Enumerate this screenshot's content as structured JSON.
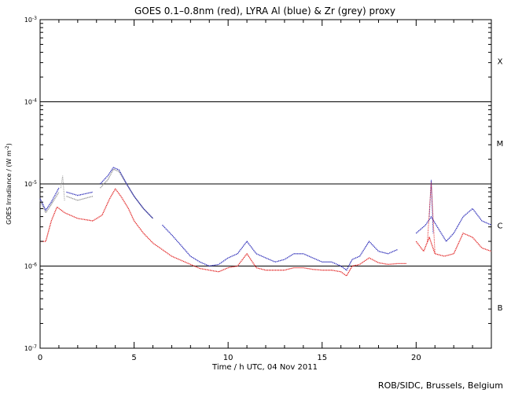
{
  "chart_data": {
    "type": "line",
    "title": "GOES 0.1–0.8nm (red), LYRA Al (blue) & Zr (grey) proxy",
    "xlabel": "Time / h UTC, 04 Nov 2011",
    "ylabel_main": "GOES Irradiance / (W m",
    "ylabel_exp": "-2",
    "ylabel_close": ")",
    "credit": "ROB/SIDC, Brussels, Belgium",
    "xlim": [
      0,
      24
    ],
    "ylim_exp": [
      -7,
      -3
    ],
    "x_ticks": [
      {
        "v": 0,
        "label": "0"
      },
      {
        "v": 5,
        "label": "5"
      },
      {
        "v": 10,
        "label": "10"
      },
      {
        "v": 15,
        "label": "15"
      },
      {
        "v": 20,
        "label": "20"
      }
    ],
    "x_minor": [
      1,
      2,
      3,
      4,
      6,
      7,
      8,
      9,
      11,
      12,
      13,
      14,
      16,
      17,
      18,
      19,
      21,
      22,
      23
    ],
    "y_ticks": [
      {
        "exp": -7,
        "base": "10",
        "sup": "-7"
      },
      {
        "exp": -6,
        "base": "10",
        "sup": "-6"
      },
      {
        "exp": -5,
        "base": "10",
        "sup": "-5"
      },
      {
        "exp": -4,
        "base": "10",
        "sup": "-4"
      },
      {
        "exp": -3,
        "base": "10",
        "sup": "-3"
      }
    ],
    "threshold_lines": [
      -6,
      -5,
      -4
    ],
    "flare_classes": [
      {
        "label": "X",
        "exp": -3.5
      },
      {
        "label": "M",
        "exp": -4.5
      },
      {
        "label": "C",
        "exp": -5.5
      },
      {
        "label": "B",
        "exp": -6.5
      }
    ],
    "series": [
      {
        "name": "LYRA Zr proxy",
        "color": "#8c8c8c",
        "segments": [
          [
            [
              0,
              -5.2
            ],
            [
              0.3,
              -5.35
            ],
            [
              0.6,
              -5.25
            ],
            [
              1.0,
              -5.1
            ]
          ],
          [
            [
              1.4,
              -5.15
            ],
            [
              2.0,
              -5.2
            ],
            [
              2.8,
              -5.15
            ]
          ],
          [
            [
              3.2,
              -5.05
            ],
            [
              3.6,
              -4.95
            ],
            [
              3.9,
              -4.82
            ],
            [
              4.2,
              -4.85
            ],
            [
              4.6,
              -5.0
            ],
            [
              5.0,
              -5.15
            ],
            [
              5.5,
              -5.3
            ],
            [
              6.0,
              -5.42
            ]
          ]
        ]
      },
      {
        "name": "LYRA Al proxy",
        "color": "#1f1fb4",
        "segments": [
          [
            [
              0,
              -5.18
            ],
            [
              0.3,
              -5.32
            ],
            [
              0.6,
              -5.22
            ],
            [
              1.0,
              -5.05
            ]
          ],
          [
            [
              1.4,
              -5.1
            ],
            [
              2.0,
              -5.14
            ],
            [
              2.8,
              -5.1
            ]
          ],
          [
            [
              3.2,
              -5.0
            ],
            [
              3.6,
              -4.9
            ],
            [
              3.9,
              -4.8
            ],
            [
              4.2,
              -4.83
            ],
            [
              4.6,
              -5.0
            ],
            [
              5.0,
              -5.15
            ],
            [
              5.5,
              -5.3
            ],
            [
              6.0,
              -5.42
            ]
          ],
          [
            [
              6.5,
              -5.5
            ],
            [
              7.0,
              -5.62
            ],
            [
              7.5,
              -5.75
            ],
            [
              8.0,
              -5.88
            ],
            [
              8.5,
              -5.95
            ],
            [
              9.0,
              -6.0
            ],
            [
              9.5,
              -5.98
            ],
            [
              10.0,
              -5.9
            ],
            [
              10.5,
              -5.85
            ],
            [
              11.0,
              -5.7
            ],
            [
              11.5,
              -5.85
            ],
            [
              12.0,
              -5.9
            ],
            [
              12.5,
              -5.95
            ],
            [
              13.0,
              -5.92
            ],
            [
              13.5,
              -5.85
            ],
            [
              14.0,
              -5.85
            ],
            [
              14.5,
              -5.9
            ],
            [
              15.0,
              -5.95
            ],
            [
              15.5,
              -5.95
            ],
            [
              16.0,
              -6.0
            ],
            [
              16.3,
              -6.05
            ],
            [
              16.6,
              -5.92
            ],
            [
              17.0,
              -5.88
            ],
            [
              17.5,
              -5.7
            ],
            [
              18.0,
              -5.82
            ],
            [
              18.5,
              -5.85
            ],
            [
              19.0,
              -5.8
            ]
          ],
          [
            [
              20.0,
              -5.6
            ],
            [
              20.5,
              -5.5
            ],
            [
              20.8,
              -5.4
            ],
            [
              21.2,
              -5.55
            ],
            [
              21.6,
              -5.7
            ],
            [
              22.0,
              -5.6
            ],
            [
              22.5,
              -5.4
            ],
            [
              23.0,
              -5.3
            ],
            [
              23.5,
              -5.45
            ],
            [
              24.0,
              -5.5
            ]
          ]
        ]
      },
      {
        "name": "GOES 0.1–0.8nm",
        "color": "#e01a1a",
        "segments": [
          [
            [
              0,
              -5.7
            ],
            [
              0.3,
              -5.7
            ],
            [
              0.6,
              -5.45
            ],
            [
              0.9,
              -5.28
            ],
            [
              1.3,
              -5.35
            ],
            [
              2.0,
              -5.42
            ],
            [
              2.8,
              -5.45
            ],
            [
              3.3,
              -5.38
            ],
            [
              3.7,
              -5.18
            ],
            [
              4.0,
              -5.06
            ],
            [
              4.3,
              -5.15
            ],
            [
              4.7,
              -5.3
            ],
            [
              5.0,
              -5.45
            ],
            [
              5.5,
              -5.6
            ],
            [
              6.0,
              -5.72
            ],
            [
              6.5,
              -5.8
            ],
            [
              7.0,
              -5.88
            ],
            [
              7.5,
              -5.93
            ],
            [
              8.0,
              -5.98
            ],
            [
              8.5,
              -6.03
            ],
            [
              9.0,
              -6.05
            ],
            [
              9.5,
              -6.07
            ],
            [
              10.0,
              -6.02
            ],
            [
              10.5,
              -6.0
            ],
            [
              11.0,
              -5.85
            ],
            [
              11.5,
              -6.02
            ],
            [
              12.0,
              -6.05
            ],
            [
              12.5,
              -6.05
            ],
            [
              13.0,
              -6.05
            ],
            [
              13.5,
              -6.02
            ],
            [
              14.0,
              -6.02
            ],
            [
              14.5,
              -6.04
            ],
            [
              15.0,
              -6.05
            ],
            [
              15.5,
              -6.05
            ],
            [
              16.0,
              -6.07
            ],
            [
              16.3,
              -6.12
            ],
            [
              16.6,
              -6.0
            ],
            [
              17.0,
              -5.98
            ],
            [
              17.5,
              -5.9
            ],
            [
              18.0,
              -5.96
            ],
            [
              18.5,
              -5.98
            ],
            [
              19.0,
              -5.97
            ],
            [
              19.5,
              -5.97
            ]
          ],
          [
            [
              20.0,
              -5.7
            ],
            [
              20.4,
              -5.82
            ],
            [
              20.7,
              -5.65
            ],
            [
              21.0,
              -5.85
            ],
            [
              21.5,
              -5.88
            ],
            [
              22.0,
              -5.85
            ],
            [
              22.5,
              -5.6
            ],
            [
              23.0,
              -5.65
            ],
            [
              23.5,
              -5.78
            ],
            [
              24.0,
              -5.82
            ]
          ]
        ]
      }
    ],
    "spikes": [
      {
        "color": "#1f1fb4",
        "points": [
          [
            20.7,
            -5.4
          ],
          [
            20.8,
            -4.95
          ],
          [
            20.9,
            -5.6
          ]
        ]
      },
      {
        "color": "#e01a1a",
        "points": [
          [
            20.6,
            -5.7
          ],
          [
            20.8,
            -4.98
          ],
          [
            21.0,
            -5.85
          ]
        ]
      },
      {
        "color": "#8c8c8c",
        "points": [
          [
            1.1,
            -5.05
          ],
          [
            1.2,
            -4.9
          ],
          [
            1.3,
            -5.2
          ]
        ]
      }
    ]
  }
}
